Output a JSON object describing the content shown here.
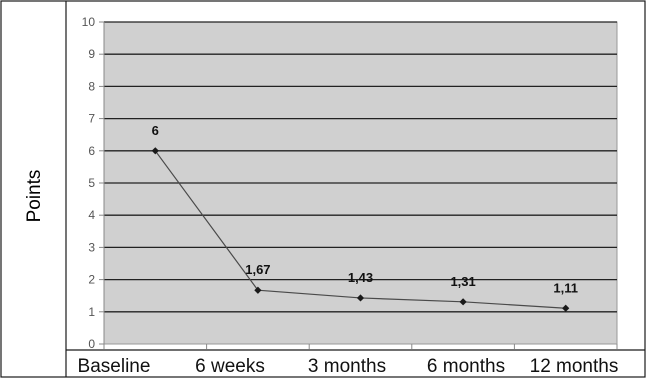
{
  "chart_data": {
    "type": "line",
    "title": "",
    "xlabel": "",
    "ylabel": "Points",
    "ylim": [
      0,
      10
    ],
    "yticks": [
      "0",
      "1",
      "2",
      "3",
      "4",
      "5",
      "6",
      "7",
      "8",
      "9",
      "10"
    ],
    "grid": true,
    "categories": [
      "Baseline",
      "6 weeks",
      "3 months",
      "6 months",
      "12 months"
    ],
    "series": [
      {
        "values": [
          6,
          1.67,
          1.43,
          1.31,
          1.11
        ],
        "labels": [
          "6",
          "1,67",
          "1,43",
          "1,31",
          "1,11"
        ]
      }
    ],
    "colors": {
      "plot_background": "#d0d0d0",
      "gridline": "#222222",
      "line": "#4a4a4a",
      "marker": "#1a1a1a",
      "text": "#111111"
    }
  }
}
